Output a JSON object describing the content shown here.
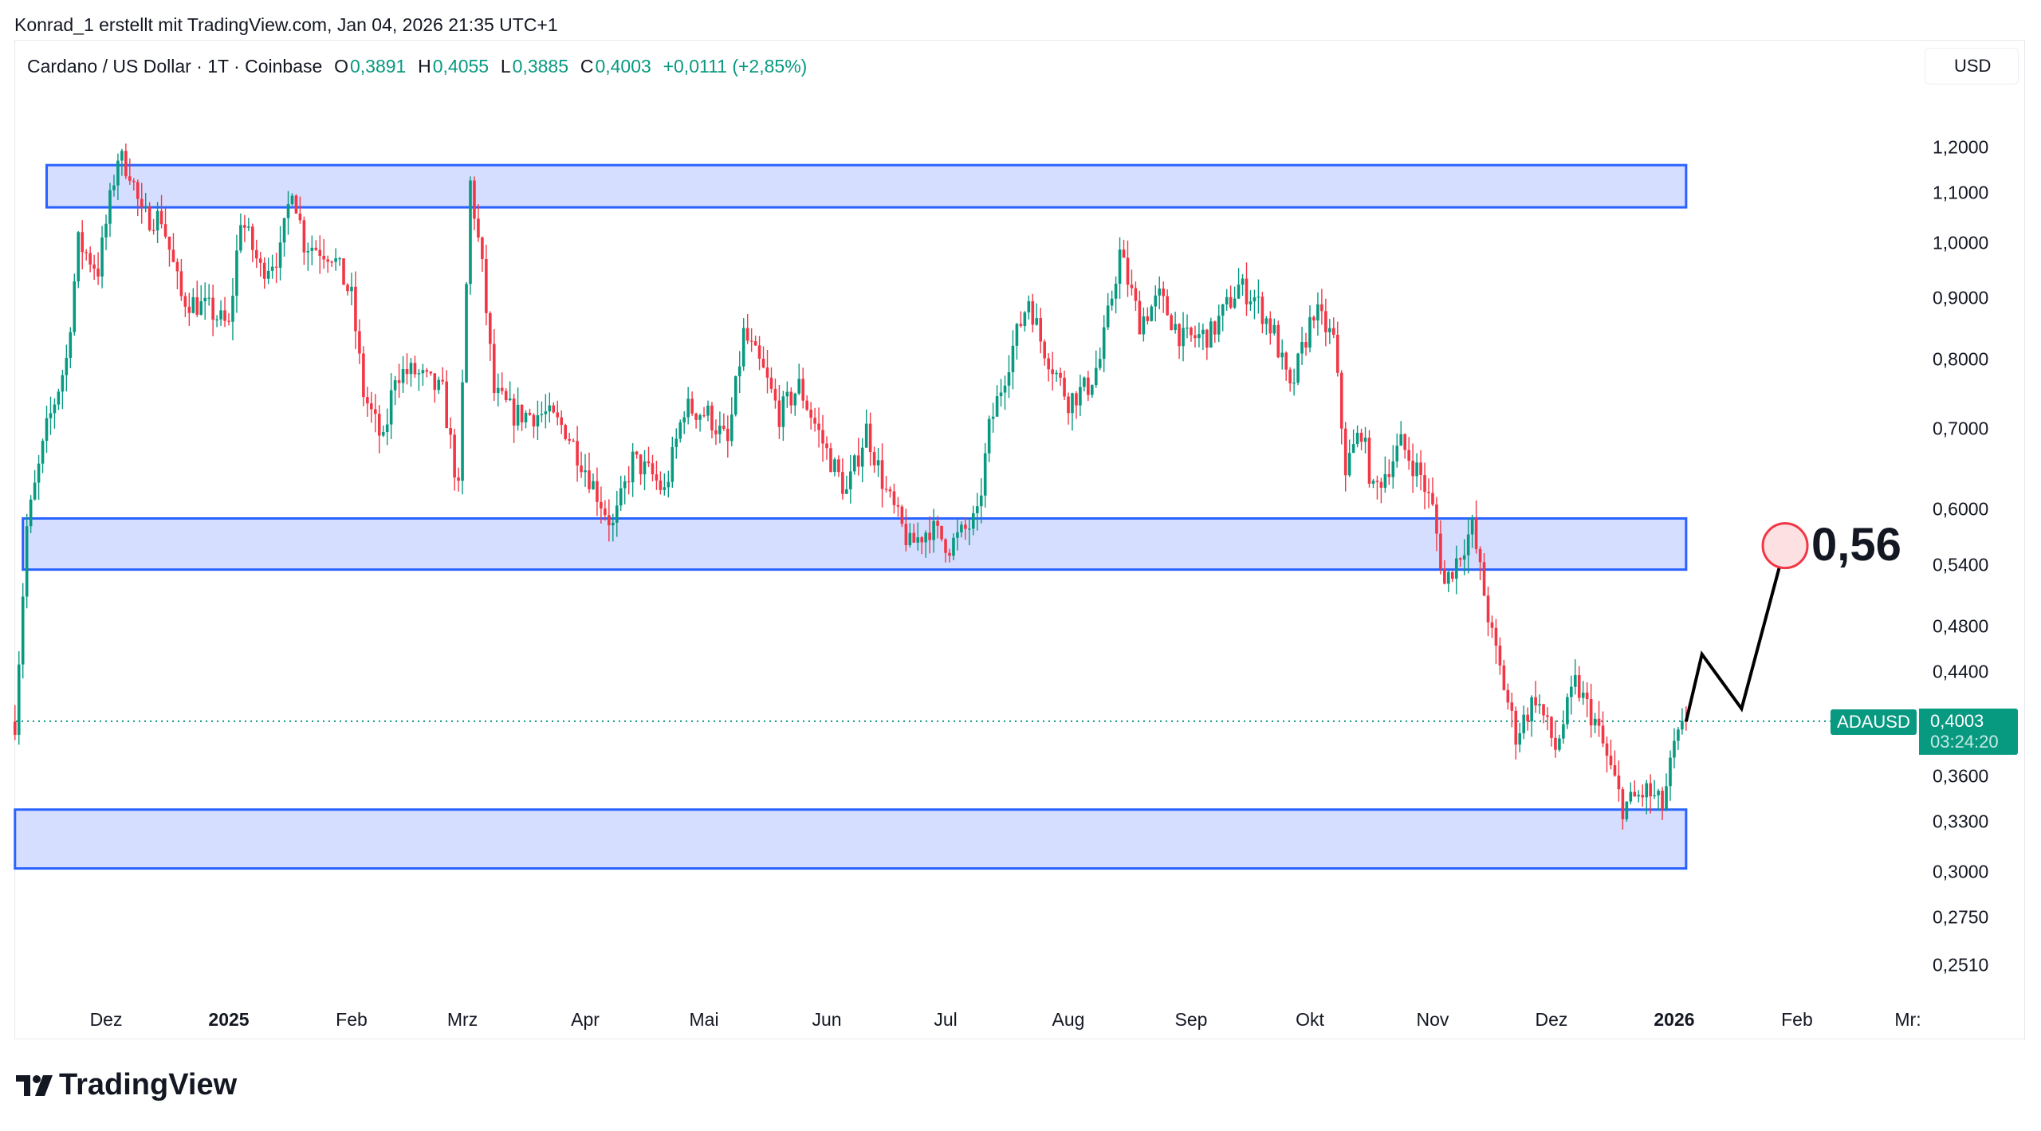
{
  "attribution": "Konrad_1 erstellt mit TradingView.com, Jan 04, 2026 21:35 UTC+1",
  "legend": {
    "symbol": "Cardano / US Dollar · 1T · Coinbase",
    "o_label": "O",
    "o": "0,3891",
    "h_label": "H",
    "h": "0,4055",
    "l_label": "L",
    "l": "0,3885",
    "c_label": "C",
    "c": "0,4003",
    "change": "+0,0111 (+2,85%)"
  },
  "currency_button": "USD",
  "price_tag": {
    "symbol": "ADAUSD",
    "price": "0,4003",
    "countdown": "03:24:20"
  },
  "target_label": "0,56",
  "logo_text": "TradingView",
  "colors": {
    "up": "#089981",
    "down": "#f23645",
    "zone_fill": "#d6deff",
    "zone_border": "#2962ff",
    "target_circle": "#f23645"
  },
  "chart_data": {
    "type": "candlestick",
    "title": "Cardano / US Dollar · 1T · Coinbase",
    "y_scale": "log",
    "ylim": [
      0.23,
      1.45
    ],
    "y_ticks": [
      {
        "value": 1.2,
        "label": "1,2000"
      },
      {
        "value": 1.1,
        "label": "1,1000"
      },
      {
        "value": 1.0,
        "label": "1,0000"
      },
      {
        "value": 0.9,
        "label": "0,9000"
      },
      {
        "value": 0.8,
        "label": "0,8000"
      },
      {
        "value": 0.7,
        "label": "0,7000"
      },
      {
        "value": 0.6,
        "label": "0,6000"
      },
      {
        "value": 0.54,
        "label": "0,5400"
      },
      {
        "value": 0.48,
        "label": "0,4800"
      },
      {
        "value": 0.44,
        "label": "0,4400"
      },
      {
        "value": 0.36,
        "label": "0,3600"
      },
      {
        "value": 0.33,
        "label": "0,3300"
      },
      {
        "value": 0.3,
        "label": "0,3000"
      },
      {
        "value": 0.275,
        "label": "0,2750"
      },
      {
        "value": 0.251,
        "label": "0,2510"
      }
    ],
    "x_unit": "days since 2025-01-01",
    "x_ticks": [
      {
        "day": -31,
        "label": "Dez",
        "bold": false
      },
      {
        "day": 0,
        "label": "2025",
        "bold": true
      },
      {
        "day": 31,
        "label": "Feb",
        "bold": false
      },
      {
        "day": 59,
        "label": "Mrz",
        "bold": false
      },
      {
        "day": 90,
        "label": "Apr",
        "bold": false
      },
      {
        "day": 120,
        "label": "Mai",
        "bold": false
      },
      {
        "day": 151,
        "label": "Jun",
        "bold": false
      },
      {
        "day": 181,
        "label": "Jul",
        "bold": false
      },
      {
        "day": 212,
        "label": "Aug",
        "bold": false
      },
      {
        "day": 243,
        "label": "Sep",
        "bold": false
      },
      {
        "day": 273,
        "label": "Okt",
        "bold": false
      },
      {
        "day": 304,
        "label": "Nov",
        "bold": false
      },
      {
        "day": 334,
        "label": "Dez",
        "bold": false
      },
      {
        "day": 365,
        "label": "2026",
        "bold": true
      },
      {
        "day": 396,
        "label": "Feb",
        "bold": false
      },
      {
        "day": 424,
        "label": "Mr:",
        "bold": false
      }
    ],
    "close_path_anchors": [
      [
        -54,
        0.4
      ],
      [
        -51,
        0.58
      ],
      [
        -46,
        0.7
      ],
      [
        -41,
        0.8
      ],
      [
        -38,
        1.0
      ],
      [
        -33,
        0.95
      ],
      [
        -28,
        1.18
      ],
      [
        -25,
        1.15
      ],
      [
        -22,
        1.05
      ],
      [
        -17,
        1.05
      ],
      [
        -12,
        0.9
      ],
      [
        -5,
        0.88
      ],
      [
        0,
        0.85
      ],
      [
        3,
        1.05
      ],
      [
        8,
        0.95
      ],
      [
        13,
        0.98
      ],
      [
        16,
        1.12
      ],
      [
        19,
        1.0
      ],
      [
        26,
        0.98
      ],
      [
        31,
        0.9
      ],
      [
        34,
        0.75
      ],
      [
        39,
        0.68
      ],
      [
        42,
        0.78
      ],
      [
        47,
        0.78
      ],
      [
        54,
        0.75
      ],
      [
        58,
        0.62
      ],
      [
        61,
        1.12
      ],
      [
        64,
        0.95
      ],
      [
        67,
        0.75
      ],
      [
        72,
        0.72
      ],
      [
        80,
        0.72
      ],
      [
        85,
        0.7
      ],
      [
        90,
        0.65
      ],
      [
        97,
        0.58
      ],
      [
        102,
        0.66
      ],
      [
        107,
        0.64
      ],
      [
        110,
        0.62
      ],
      [
        115,
        0.73
      ],
      [
        121,
        0.72
      ],
      [
        126,
        0.68
      ],
      [
        130,
        0.84
      ],
      [
        135,
        0.78
      ],
      [
        139,
        0.72
      ],
      [
        144,
        0.76
      ],
      [
        151,
        0.67
      ],
      [
        156,
        0.62
      ],
      [
        161,
        0.7
      ],
      [
        166,
        0.62
      ],
      [
        172,
        0.56
      ],
      [
        177,
        0.58
      ],
      [
        182,
        0.56
      ],
      [
        189,
        0.59
      ],
      [
        192,
        0.7
      ],
      [
        197,
        0.8
      ],
      [
        202,
        0.9
      ],
      [
        205,
        0.83
      ],
      [
        212,
        0.74
      ],
      [
        217,
        0.76
      ],
      [
        220,
        0.8
      ],
      [
        225,
        0.98
      ],
      [
        230,
        0.86
      ],
      [
        235,
        0.9
      ],
      [
        241,
        0.83
      ],
      [
        248,
        0.84
      ],
      [
        255,
        0.92
      ],
      [
        259,
        0.9
      ],
      [
        264,
        0.84
      ],
      [
        268,
        0.75
      ],
      [
        274,
        0.88
      ],
      [
        279,
        0.83
      ],
      [
        282,
        0.65
      ],
      [
        286,
        0.7
      ],
      [
        289,
        0.62
      ],
      [
        296,
        0.68
      ],
      [
        301,
        0.64
      ],
      [
        304,
        0.6
      ],
      [
        307,
        0.52
      ],
      [
        314,
        0.58
      ],
      [
        319,
        0.47
      ],
      [
        325,
        0.39
      ],
      [
        330,
        0.42
      ],
      [
        335,
        0.38
      ],
      [
        340,
        0.43
      ],
      [
        345,
        0.4
      ],
      [
        352,
        0.34
      ],
      [
        358,
        0.35
      ],
      [
        362,
        0.34
      ],
      [
        365,
        0.38
      ],
      [
        368,
        0.4003
      ]
    ],
    "last_price": 0.4003,
    "zones": [
      {
        "name": "resistance-zone",
        "from_day": -46,
        "to_day": 368,
        "low": 1.07,
        "high": 1.16
      },
      {
        "name": "mid-support-zone",
        "from_day": -52,
        "to_day": 368,
        "low": 0.535,
        "high": 0.59
      },
      {
        "name": "bottom-support-zone",
        "from_day": -54,
        "to_day": 368,
        "low": 0.302,
        "high": 0.338
      }
    ],
    "projection": [
      [
        368,
        0.4
      ],
      [
        372,
        0.455
      ],
      [
        382,
        0.41
      ],
      [
        393,
        0.56
      ]
    ],
    "target": {
      "day": 393,
      "price": 0.56
    }
  }
}
